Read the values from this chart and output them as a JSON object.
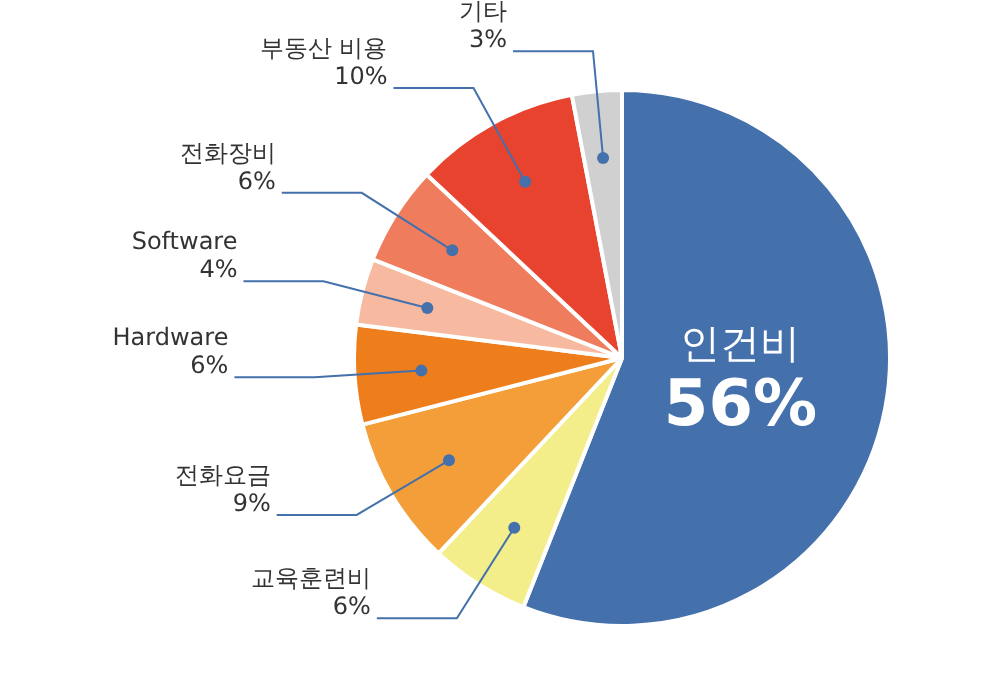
{
  "chart_data": {
    "type": "pie",
    "categories": [
      "인건비",
      "교육훈련비",
      "전화요금",
      "Hardware",
      "Software",
      "전화장비",
      "부동산 비용",
      "기타"
    ],
    "values": [
      56,
      6,
      9,
      6,
      4,
      6,
      10,
      3
    ],
    "value_labels": [
      "56%",
      "6%",
      "9%",
      "6%",
      "4%",
      "6%",
      "10%",
      "3%"
    ],
    "colors": [
      "#4470ab",
      "#f3ee8a",
      "#f39e38",
      "#ee7d1c",
      "#f7b9a0",
      "#ef7c5d",
      "#e8432f",
      "#d0d0d0"
    ],
    "legend": false
  }
}
